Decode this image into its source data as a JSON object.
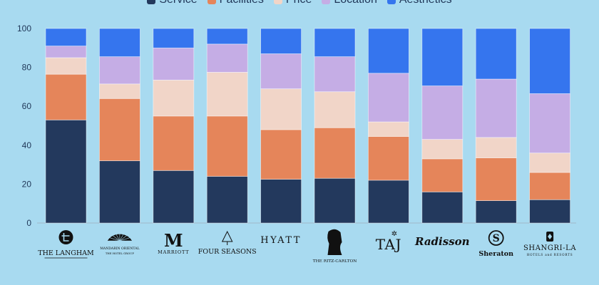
{
  "chart_data": {
    "type": "bar",
    "stacked": true,
    "categories": [
      "The Langham",
      "Mandarin Oriental",
      "Marriott",
      "Four Seasons",
      "Hyatt",
      "The Ritz-Carlton",
      "Taj",
      "Radisson",
      "Sheraton",
      "Shangri-La"
    ],
    "series": [
      {
        "name": "Service",
        "color": "#23395d",
        "values": [
          53,
          32,
          27,
          24,
          22.5,
          23,
          22,
          16,
          11.5,
          12
        ]
      },
      {
        "name": "Facilities",
        "color": "#e5855a",
        "values": [
          23.5,
          32,
          28,
          31,
          25.5,
          26,
          22.5,
          17,
          22,
          14
        ]
      },
      {
        "name": "Price",
        "color": "#f1d5c8",
        "values": [
          8.5,
          7.5,
          18.5,
          22.5,
          21,
          18.5,
          7.5,
          10,
          10.5,
          10
        ]
      },
      {
        "name": "Location",
        "color": "#c5ade5",
        "values": [
          6,
          14,
          16.5,
          14.5,
          18,
          18,
          25,
          27.5,
          30,
          30.5
        ]
      },
      {
        "name": "Aesthetics",
        "color": "#3575ee",
        "values": [
          9,
          14.5,
          10,
          8,
          13,
          14.5,
          23,
          29.5,
          26,
          33.5
        ]
      }
    ],
    "y_ticks": [
      0,
      20,
      40,
      60,
      80,
      100
    ],
    "ylim": [
      0,
      100
    ],
    "grid": false,
    "legend_position": "top-center"
  },
  "brands": [
    {
      "lines": [
        "THE LANGHAM"
      ],
      "icon": "langham-monogram-icon"
    },
    {
      "lines": [
        "MANDARIN ORIENTAL",
        "THE HOTEL GROUP"
      ],
      "icon": "fan-icon"
    },
    {
      "lines": [
        "MARRIOTT"
      ],
      "icon": "marriott-m-icon"
    },
    {
      "lines": [
        "FOUR SEASONS"
      ],
      "icon": "tree-icon"
    },
    {
      "lines": [
        "HYATT"
      ],
      "icon": "none"
    },
    {
      "lines": [
        "THE RITZ-CARLTON"
      ],
      "icon": "lion-crest-icon"
    },
    {
      "lines": [
        "TAJ"
      ],
      "icon": "star-emblem-icon"
    },
    {
      "lines": [
        "Radisson"
      ],
      "icon": "none"
    },
    {
      "lines": [
        "Sheraton"
      ],
      "icon": "sheraton-s-icon"
    },
    {
      "lines": [
        "SHANGRI-LA",
        "HOTELS and RESORTS"
      ],
      "icon": "shangrila-emblem-icon"
    }
  ]
}
